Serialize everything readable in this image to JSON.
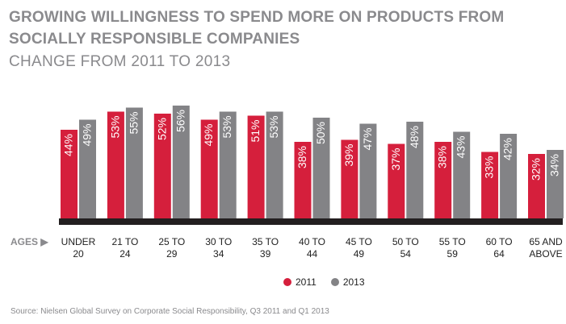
{
  "title": "GROWING WILLINGNESS TO SPEND MORE ON PRODUCTS FROM SOCIALLY RESPONSIBLE COMPANIES",
  "subtitle": "CHANGE FROM 2011 TO 2013",
  "axis_prefix": "AGES ▶",
  "source": "Source: Nielsen Global Survey on Corporate Social Responsibility, Q3 2011 and Q1 2013",
  "colors": {
    "s2011": "#d51f3c",
    "s2013": "#838386",
    "baseline": "#231f20",
    "title": "#8a8a8d"
  },
  "chart_data": {
    "type": "bar",
    "title": "GROWING WILLINGNESS TO SPEND MORE ON PRODUCTS FROM SOCIALLY RESPONSIBLE COMPANIES",
    "subtitle": "CHANGE FROM 2011 TO 2013",
    "categories": [
      [
        "UNDER",
        "20"
      ],
      [
        "21 TO",
        "24"
      ],
      [
        "25 TO",
        "29"
      ],
      [
        "30 TO",
        "34"
      ],
      [
        "35 TO",
        "39"
      ],
      [
        "40 TO",
        "44"
      ],
      [
        "45 TO",
        "49"
      ],
      [
        "50 TO",
        "54"
      ],
      [
        "55 TO",
        "59"
      ],
      [
        "60 TO",
        "64"
      ],
      [
        "65 AND",
        "ABOVE"
      ]
    ],
    "series": [
      {
        "name": "2011",
        "values": [
          44,
          53,
          52,
          49,
          51,
          38,
          39,
          37,
          38,
          33,
          32
        ]
      },
      {
        "name": "2013",
        "values": [
          49,
          55,
          56,
          53,
          53,
          50,
          47,
          48,
          43,
          42,
          34
        ]
      }
    ],
    "value_suffix": "%",
    "xlabel": "AGES",
    "ylabel": "",
    "ylim": [
      0,
      60
    ],
    "grid": false,
    "legend_position": "bottom"
  }
}
